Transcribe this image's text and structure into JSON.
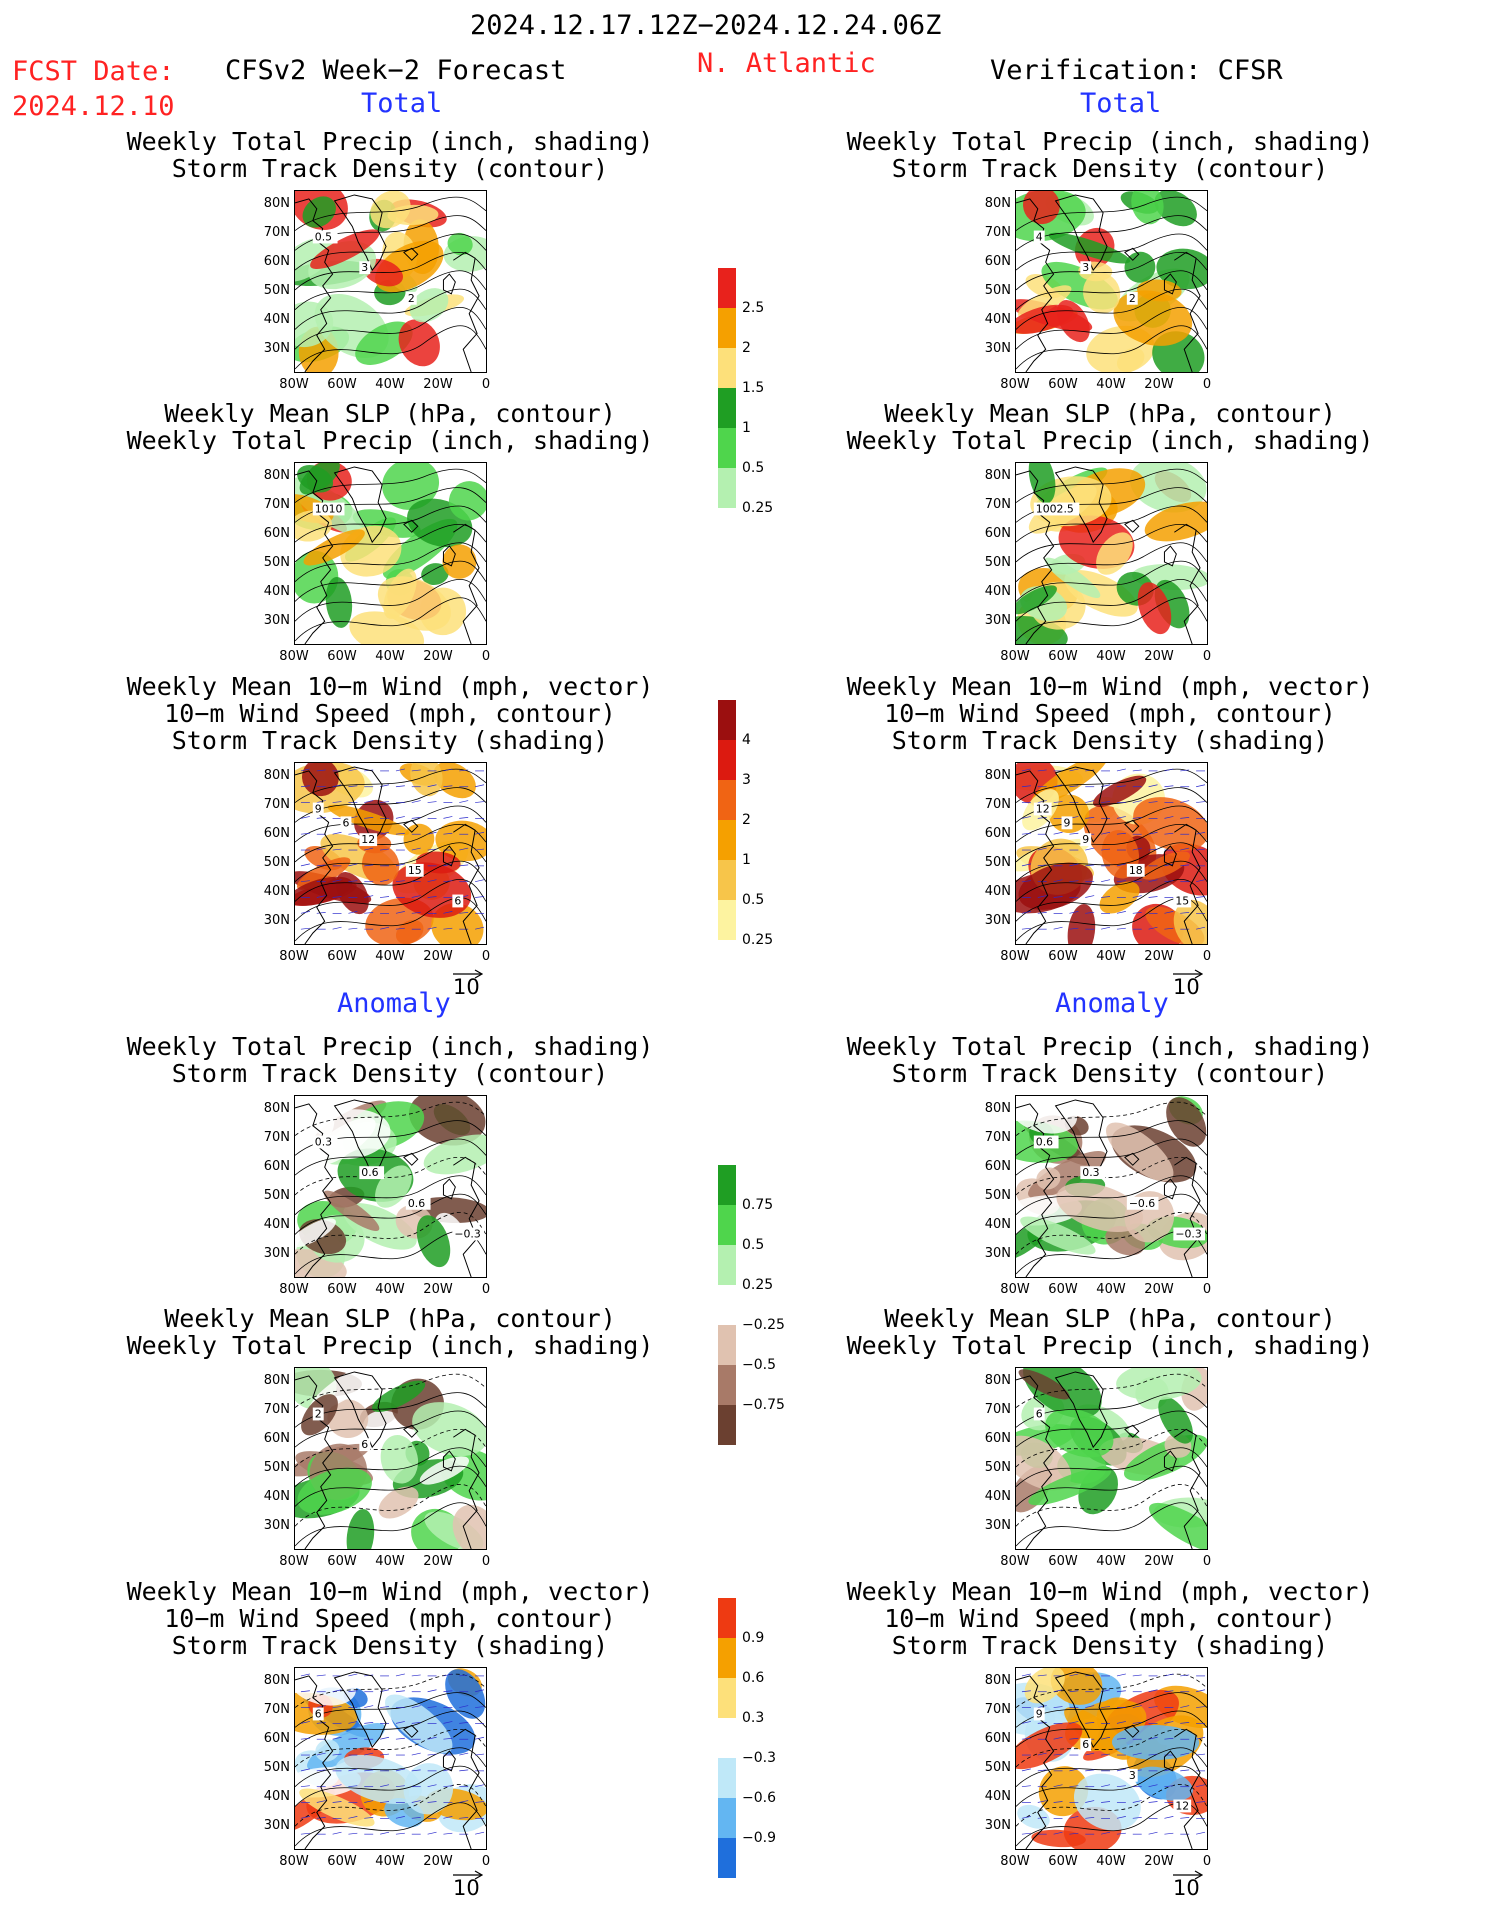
{
  "header": {
    "date_range": "2024.12.17.12Z−2024.12.24.06Z",
    "fcst_label": "FCST Date:",
    "fcst_date": "2024.12.10",
    "left_title": "CFSv2 Week−2 Forecast",
    "region": "N. Atlantic",
    "right_title": "Verification: CFSR"
  },
  "sections": {
    "total": "Total",
    "anomaly": "Anomaly"
  },
  "panel_titles": {
    "precip_track": [
      "Weekly Total Precip (inch, shading)",
      "Storm Track Density (contour)"
    ],
    "slp_precip": [
      "Weekly Mean SLP (hPa, contour)",
      "Weekly Total Precip (inch, shading)"
    ],
    "wind_track": [
      "Weekly Mean 10−m Wind (mph, vector)",
      "10−m Wind Speed (mph, contour)",
      "Storm Track Density (shading)"
    ]
  },
  "axes": {
    "lat_labels": [
      "80N",
      "70N",
      "60N",
      "50N",
      "40N",
      "30N"
    ],
    "lon_labels": [
      "80W",
      "60W",
      "40W",
      "20W",
      "0"
    ]
  },
  "vector_scale": "10",
  "colorbars": {
    "precip_total": {
      "labels": [
        "2.5",
        "2",
        "1.5",
        "1",
        "0.5",
        "0.25"
      ],
      "colors": [
        "#e8221c",
        "#f5a000",
        "#fde07a",
        "#1f9e23",
        "#4fd54c",
        "#b4f0b0"
      ]
    },
    "track_total": {
      "labels": [
        "4",
        "3",
        "2",
        "1",
        "0.5",
        "0.25"
      ],
      "colors": [
        "#9b0f0f",
        "#dc1a10",
        "#f06414",
        "#f5a000",
        "#f7c54a",
        "#fdf3a0"
      ]
    },
    "precip_anom": {
      "labels": [
        "0.75",
        "0.5",
        "0.25",
        "−0.25",
        "−0.5",
        "−0.75"
      ],
      "colors": [
        "#1f9e23",
        "#4fd54c",
        "#b4f0b0",
        "#ffffff",
        "#e0c2b0",
        "#a87a68",
        "#6b4030"
      ]
    },
    "track_anom": {
      "labels": [
        "0.9",
        "0.6",
        "0.3",
        "−0.3",
        "−0.6",
        "−0.9"
      ],
      "colors": [
        "#ee3a12",
        "#f5a000",
        "#fde07a",
        "#ffffff",
        "#bfe8f8",
        "#63b6f2",
        "#1f6fdc"
      ]
    },
    "colors_legend": {
      "land": "#ffffff",
      "contour": "#000000",
      "vector": "#2a2acc"
    }
  },
  "maps": {
    "fcst": {
      "total": {
        "precip_track": {
          "contour_labels": [
            "0.5",
            "3",
            "2"
          ]
        },
        "slp_precip": {
          "contour_labels": [
            "1010"
          ]
        },
        "wind_track": {
          "contour_labels": [
            "9",
            "12",
            "15",
            "6",
            "6"
          ]
        }
      },
      "anomaly": {
        "precip_track": {
          "contour_labels": [
            "0.3",
            "0.6",
            "0.6",
            "−0.3"
          ]
        },
        "slp_precip": {
          "contour_labels": [
            "2",
            "6"
          ]
        },
        "wind_track": {
          "contour_labels": [
            "6"
          ]
        }
      }
    },
    "verif": {
      "total": {
        "precip_track": {
          "contour_labels": [
            "4",
            "3",
            "2"
          ]
        },
        "slp_precip": {
          "contour_labels": [
            "1002.5"
          ]
        },
        "wind_track": {
          "contour_labels": [
            "12",
            "9",
            "18",
            "15",
            "9"
          ]
        }
      },
      "anomaly": {
        "precip_track": {
          "contour_labels": [
            "0.6",
            "0.3",
            "−0.6",
            "−0.3"
          ]
        },
        "slp_precip": {
          "contour_labels": [
            "6"
          ]
        },
        "wind_track": {
          "contour_labels": [
            "9",
            "6",
            "3",
            "12"
          ]
        }
      }
    }
  }
}
